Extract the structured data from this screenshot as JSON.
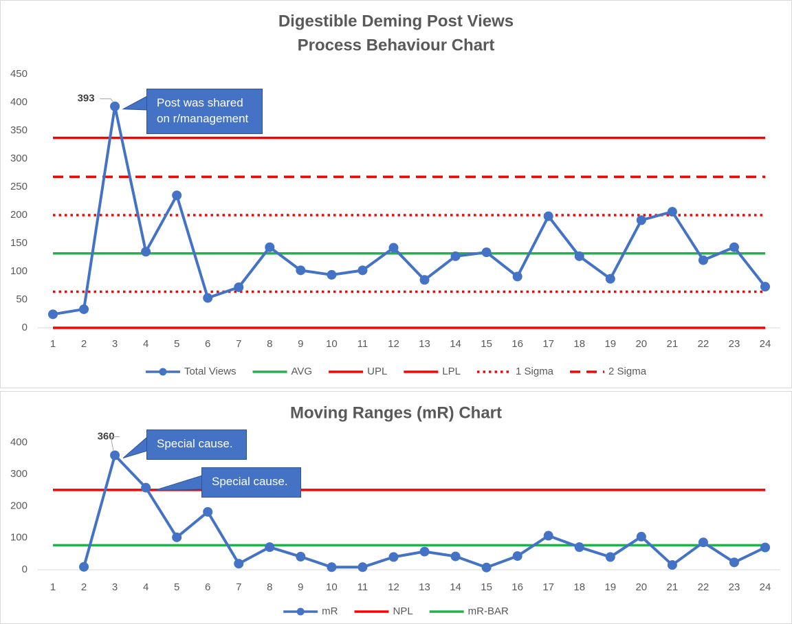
{
  "chart_data": [
    {
      "type": "line",
      "title": "Digestible Deming Post Views",
      "subtitle": "Process Behaviour Chart",
      "categories": [
        1,
        2,
        3,
        4,
        5,
        6,
        7,
        8,
        9,
        10,
        11,
        12,
        13,
        14,
        15,
        16,
        17,
        18,
        19,
        20,
        21,
        22,
        23,
        24
      ],
      "ylim": [
        0,
        450
      ],
      "yticks": [
        0,
        50,
        100,
        150,
        200,
        250,
        300,
        350,
        400,
        450
      ],
      "legend": "bottom",
      "series": [
        {
          "name": "Total Views",
          "color": "#4472c4",
          "style": "solid",
          "marker": true,
          "values": [
            24,
            33,
            393,
            135,
            235,
            53,
            72,
            143,
            102,
            94,
            102,
            142,
            85,
            127,
            134,
            91,
            198,
            127,
            87,
            191,
            206,
            120,
            143,
            73
          ]
        },
        {
          "name": "AVG",
          "color": "#22b14c",
          "style": "solid",
          "marker": false,
          "values": [
            132,
            132,
            132,
            132,
            132,
            132,
            132,
            132,
            132,
            132,
            132,
            132,
            132,
            132,
            132,
            132,
            132,
            132,
            132,
            132,
            132,
            132,
            132,
            132
          ]
        },
        {
          "name": "UPL",
          "color": "#ff0000",
          "style": "solid",
          "marker": false,
          "values": [
            337,
            337,
            337,
            337,
            337,
            337,
            337,
            337,
            337,
            337,
            337,
            337,
            337,
            337,
            337,
            337,
            337,
            337,
            337,
            337,
            337,
            337,
            337,
            337
          ]
        },
        {
          "name": "LPL",
          "color": "#ff0000",
          "style": "solid",
          "marker": false,
          "values": [
            0,
            0,
            0,
            0,
            0,
            0,
            0,
            0,
            0,
            0,
            0,
            0,
            0,
            0,
            0,
            0,
            0,
            0,
            0,
            0,
            0,
            0,
            0,
            0
          ]
        },
        {
          "name": "1 Sigma",
          "color": "#ff0000",
          "style": "dotted",
          "marker": false,
          "values": [
            200,
            200,
            200,
            200,
            200,
            200,
            200,
            200,
            200,
            200,
            200,
            200,
            200,
            200,
            200,
            200,
            200,
            200,
            200,
            200,
            200,
            200,
            200,
            200
          ],
          "lower_values": [
            64,
            64,
            64,
            64,
            64,
            64,
            64,
            64,
            64,
            64,
            64,
            64,
            64,
            64,
            64,
            64,
            64,
            64,
            64,
            64,
            64,
            64,
            64,
            64
          ]
        },
        {
          "name": "2 Sigma",
          "color": "#ff0000",
          "style": "dashed",
          "marker": false,
          "values": [
            268,
            268,
            268,
            268,
            268,
            268,
            268,
            268,
            268,
            268,
            268,
            268,
            268,
            268,
            268,
            268,
            268,
            268,
            268,
            268,
            268,
            268,
            268,
            268
          ]
        }
      ],
      "annotations": [
        "Post was shared on r/management"
      ]
    },
    {
      "type": "line",
      "title": "Moving Ranges (mR) Chart",
      "categories": [
        1,
        2,
        3,
        4,
        5,
        6,
        7,
        8,
        9,
        10,
        11,
        12,
        13,
        14,
        15,
        16,
        17,
        18,
        19,
        20,
        21,
        22,
        23,
        24
      ],
      "ylim": [
        0,
        400
      ],
      "yticks": [
        0,
        100,
        200,
        300,
        400
      ],
      "legend": "bottom",
      "series": [
        {
          "name": "mR",
          "color": "#4472c4",
          "style": "solid",
          "marker": true,
          "values": [
            null,
            9,
            360,
            258,
            102,
            182,
            19,
            71,
            41,
            8,
            8,
            40,
            57,
            42,
            7,
            43,
            107,
            71,
            40,
            104,
            15,
            86,
            23,
            70
          ]
        },
        {
          "name": "NPL",
          "color": "#ff0000",
          "style": "solid",
          "marker": false,
          "values": [
            251,
            251,
            251,
            251,
            251,
            251,
            251,
            251,
            251,
            251,
            251,
            251,
            251,
            251,
            251,
            251,
            251,
            251,
            251,
            251,
            251,
            251,
            251,
            251
          ]
        },
        {
          "name": "mR-BAR",
          "color": "#22b14c",
          "style": "solid",
          "marker": false,
          "values": [
            77,
            77,
            77,
            77,
            77,
            77,
            77,
            77,
            77,
            77,
            77,
            77,
            77,
            77,
            77,
            77,
            77,
            77,
            77,
            77,
            77,
            77,
            77,
            77
          ]
        }
      ],
      "annotations": [
        "Special cause.",
        "Special cause."
      ]
    }
  ]
}
